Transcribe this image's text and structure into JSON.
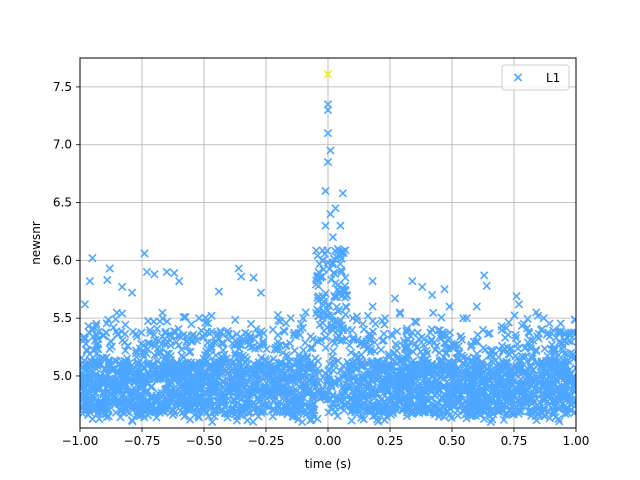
{
  "chart_data": {
    "type": "scatter",
    "title": "",
    "xlabel": "time (s)",
    "ylabel": "newsnr",
    "xlim": [
      -1.0,
      1.0
    ],
    "ylim": [
      4.55,
      7.75
    ],
    "xticks": [
      -1.0,
      -0.75,
      -0.5,
      -0.25,
      0.0,
      0.25,
      0.5,
      0.75,
      1.0
    ],
    "xtick_labels": [
      "−1.00",
      "−0.75",
      "−0.50",
      "−0.25",
      "0.00",
      "0.25",
      "0.50",
      "0.75",
      "1.00"
    ],
    "yticks": [
      5.0,
      5.5,
      6.0,
      6.5,
      7.0,
      7.5
    ],
    "ytick_labels": [
      "5.0",
      "5.5",
      "6.0",
      "6.5",
      "7.0",
      "7.5"
    ],
    "grid": true,
    "legend": {
      "placement": "top-right",
      "entries": [
        "L1"
      ]
    },
    "series": [
      {
        "name": "L1",
        "marker": "x",
        "color": "#4da6ff",
        "points": [
          [
            -0.95,
            6.02
          ],
          [
            -0.96,
            5.82
          ],
          [
            -0.98,
            5.62
          ],
          [
            -0.88,
            5.93
          ],
          [
            -0.89,
            5.83
          ],
          [
            -0.83,
            5.77
          ],
          [
            -0.79,
            5.72
          ],
          [
            -0.74,
            6.06
          ],
          [
            -0.73,
            5.9
          ],
          [
            -0.7,
            5.88
          ],
          [
            -0.65,
            5.9
          ],
          [
            -0.62,
            5.89
          ],
          [
            -0.6,
            5.82
          ],
          [
            -0.52,
            5.5
          ],
          [
            -0.44,
            5.73
          ],
          [
            -0.36,
            5.93
          ],
          [
            -0.35,
            5.86
          ],
          [
            -0.3,
            5.85
          ],
          [
            -0.27,
            5.72
          ],
          [
            -0.2,
            5.48
          ],
          [
            -0.15,
            5.5
          ],
          [
            -0.1,
            5.5
          ],
          [
            -0.09,
            5.55
          ],
          [
            -0.04,
            5.65
          ],
          [
            -0.03,
            5.85
          ],
          [
            -0.02,
            6.0
          ],
          [
            -0.01,
            6.3
          ],
          [
            -0.01,
            6.6
          ],
          [
            0.0,
            6.85
          ],
          [
            0.0,
            7.1
          ],
          [
            0.0,
            7.3
          ],
          [
            0.0,
            7.35
          ],
          [
            0.01,
            6.95
          ],
          [
            0.01,
            6.4
          ],
          [
            0.02,
            6.2
          ],
          [
            0.03,
            6.45
          ],
          [
            0.05,
            6.3
          ],
          [
            0.06,
            6.58
          ],
          [
            0.07,
            5.85
          ],
          [
            0.1,
            5.5
          ],
          [
            0.14,
            5.45
          ],
          [
            0.18,
            5.82
          ],
          [
            0.18,
            5.6
          ],
          [
            0.23,
            5.5
          ],
          [
            0.27,
            5.67
          ],
          [
            0.29,
            5.55
          ],
          [
            0.34,
            5.82
          ],
          [
            0.38,
            5.77
          ],
          [
            0.42,
            5.7
          ],
          [
            0.47,
            5.75
          ],
          [
            0.49,
            5.6
          ],
          [
            0.56,
            5.5
          ],
          [
            0.6,
            5.6
          ],
          [
            0.63,
            5.87
          ],
          [
            0.64,
            5.78
          ],
          [
            0.7,
            5.43
          ],
          [
            0.76,
            5.69
          ],
          [
            0.77,
            5.62
          ],
          [
            0.79,
            5.45
          ],
          [
            0.84,
            5.55
          ],
          [
            0.87,
            5.5
          ],
          [
            0.94,
            5.05
          ],
          [
            0.96,
            5.08
          ],
          [
            0.98,
            5.2
          ]
        ],
        "peak": {
          "x": 0.0,
          "y": 7.61,
          "color": "#f2f200"
        }
      }
    ]
  }
}
